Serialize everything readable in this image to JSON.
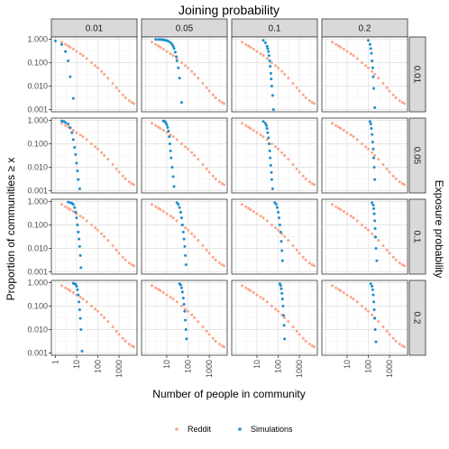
{
  "chart_data": {
    "type": "scatter",
    "title": "Joining probability",
    "xlabel": "Number of people in community",
    "ylabel": "Proportion of communities ≥ x",
    "right_label": "Exposure probability",
    "x_scale": "log10",
    "y_scale": "log10",
    "xlim": [
      0.65,
      7000
    ],
    "ylim": [
      0.0008,
      1.25
    ],
    "x_ticks": [
      {
        "value": 1,
        "label": "1"
      },
      {
        "value": 10,
        "label": "10"
      },
      {
        "value": 100,
        "label": "100"
      },
      {
        "value": 1000,
        "label": "1000"
      }
    ],
    "y_ticks": [
      {
        "value": 1,
        "label": "1.000"
      },
      {
        "value": 0.1,
        "label": "0.100"
      },
      {
        "value": 0.01,
        "label": "0.010"
      },
      {
        "value": 0.001,
        "label": "0.001"
      }
    ],
    "columns": [
      "0.01",
      "0.05",
      "0.1",
      "0.2"
    ],
    "rows": [
      "0.01",
      "0.05",
      "0.1",
      "0.2"
    ],
    "legend": {
      "position": "bottom",
      "entries": [
        {
          "name": "Reddit",
          "color": "#fca588"
        },
        {
          "name": "Simulations",
          "color": "#1a8fcc"
        }
      ]
    },
    "reddit_series": {
      "name": "Reddit",
      "x": [
        2,
        3,
        4,
        5,
        7,
        10,
        15,
        20,
        30,
        50,
        75,
        100,
        150,
        200,
        300,
        500,
        750,
        1000,
        1500,
        2000,
        3000,
        4000,
        5000
      ],
      "y": [
        0.75,
        0.6,
        0.52,
        0.45,
        0.38,
        0.3,
        0.24,
        0.2,
        0.15,
        0.1,
        0.075,
        0.06,
        0.042,
        0.032,
        0.022,
        0.013,
        0.0085,
        0.0062,
        0.0042,
        0.0032,
        0.0024,
        0.002,
        0.0018
      ]
    },
    "simulation_series": [
      {
        "row": "0.01",
        "col": "0.01",
        "x": [
          1,
          2,
          3,
          4,
          5,
          7
        ],
        "y": [
          0.85,
          0.6,
          0.3,
          0.12,
          0.025,
          0.003
        ]
      },
      {
        "row": "0.01",
        "col": "0.05",
        "x": [
          3,
          4,
          5,
          6,
          7,
          8,
          10,
          12,
          15,
          18,
          20,
          22,
          25,
          28,
          30,
          35,
          40,
          50
        ],
        "y": [
          0.98,
          0.98,
          0.97,
          0.96,
          0.95,
          0.92,
          0.88,
          0.82,
          0.72,
          0.6,
          0.5,
          0.4,
          0.28,
          0.18,
          0.12,
          0.06,
          0.022,
          0.002
        ]
      },
      {
        "row": "0.01",
        "col": "0.1",
        "x": [
          20,
          25,
          30,
          32,
          35,
          37,
          40,
          42,
          45,
          47,
          50,
          55,
          60
        ],
        "y": [
          0.9,
          0.7,
          0.5,
          0.4,
          0.3,
          0.2,
          0.12,
          0.07,
          0.035,
          0.02,
          0.01,
          0.004,
          0.001
        ]
      },
      {
        "row": "0.01",
        "col": "0.2",
        "x": [
          100,
          120,
          130,
          140,
          150,
          160,
          170,
          180,
          200
        ],
        "y": [
          0.9,
          0.6,
          0.4,
          0.25,
          0.12,
          0.06,
          0.025,
          0.008,
          0.0012
        ]
      },
      {
        "row": "0.05",
        "col": "0.01",
        "x": [
          2,
          2.5,
          3,
          4,
          5,
          6,
          7,
          8,
          9,
          10,
          11,
          12,
          14
        ],
        "y": [
          0.95,
          0.9,
          0.8,
          0.7,
          0.5,
          0.3,
          0.15,
          0.07,
          0.035,
          0.015,
          0.007,
          0.003,
          0.0012
        ]
      },
      {
        "row": "0.05",
        "col": "0.05",
        "x": [
          7,
          8,
          9,
          10,
          11,
          12,
          13,
          14,
          15,
          16,
          18,
          20,
          22
        ],
        "y": [
          0.95,
          0.9,
          0.8,
          0.65,
          0.5,
          0.35,
          0.2,
          0.1,
          0.05,
          0.025,
          0.01,
          0.004,
          0.0015
        ]
      },
      {
        "row": "0.05",
        "col": "0.1",
        "x": [
          20,
          25,
          28,
          30,
          32,
          35,
          37,
          40,
          42,
          45,
          48,
          50,
          55
        ],
        "y": [
          0.9,
          0.75,
          0.6,
          0.45,
          0.3,
          0.18,
          0.1,
          0.05,
          0.025,
          0.012,
          0.006,
          0.003,
          0.0012
        ]
      },
      {
        "row": "0.05",
        "col": "0.2",
        "x": [
          120,
          130,
          140,
          150,
          160,
          170,
          180,
          190,
          200
        ],
        "y": [
          0.9,
          0.7,
          0.45,
          0.25,
          0.12,
          0.06,
          0.025,
          0.01,
          0.003
        ]
      },
      {
        "row": "0.1",
        "col": "0.01",
        "x": [
          4,
          5,
          6,
          7,
          8,
          9,
          10,
          11,
          12,
          13,
          14,
          15,
          16
        ],
        "y": [
          0.95,
          0.9,
          0.85,
          0.75,
          0.55,
          0.35,
          0.2,
          0.1,
          0.05,
          0.025,
          0.012,
          0.005,
          0.0015
        ]
      },
      {
        "row": "0.1",
        "col": "0.05",
        "x": [
          30,
          35,
          40,
          45,
          50,
          55,
          60,
          65,
          70,
          75,
          80
        ],
        "y": [
          0.9,
          0.75,
          0.55,
          0.35,
          0.2,
          0.1,
          0.05,
          0.025,
          0.012,
          0.005,
          0.002
        ]
      },
      {
        "row": "0.1",
        "col": "0.1",
        "x": [
          70,
          80,
          90,
          100,
          110,
          120,
          130,
          140,
          150,
          160
        ],
        "y": [
          0.9,
          0.75,
          0.55,
          0.35,
          0.2,
          0.1,
          0.05,
          0.02,
          0.008,
          0.003
        ]
      },
      {
        "row": "0.1",
        "col": "0.2",
        "x": [
          150,
          170,
          180,
          190,
          200,
          210,
          220,
          230,
          250
        ],
        "y": [
          0.9,
          0.7,
          0.5,
          0.3,
          0.15,
          0.07,
          0.03,
          0.01,
          0.003
        ]
      },
      {
        "row": "0.2",
        "col": "0.01",
        "x": [
          7,
          8,
          9,
          10,
          11,
          12,
          13,
          14,
          15,
          16,
          18
        ],
        "y": [
          0.95,
          0.9,
          0.85,
          0.7,
          0.5,
          0.3,
          0.15,
          0.07,
          0.03,
          0.01,
          0.0012
        ]
      },
      {
        "row": "0.2",
        "col": "0.05",
        "x": [
          40,
          45,
          50,
          55,
          60,
          65,
          70,
          75,
          80,
          85
        ],
        "y": [
          0.9,
          0.8,
          0.6,
          0.4,
          0.22,
          0.12,
          0.06,
          0.025,
          0.01,
          0.004
        ]
      },
      {
        "row": "0.2",
        "col": "0.1",
        "x": [
          120,
          130,
          140,
          150,
          160,
          170,
          180,
          190,
          200
        ],
        "y": [
          0.9,
          0.75,
          0.55,
          0.35,
          0.2,
          0.1,
          0.04,
          0.015,
          0.004
        ]
      },
      {
        "row": "0.2",
        "col": "0.2",
        "x": [
          130,
          150,
          160,
          170,
          180,
          190,
          200,
          210,
          230
        ],
        "y": [
          0.9,
          0.7,
          0.5,
          0.3,
          0.15,
          0.07,
          0.03,
          0.01,
          0.003
        ]
      }
    ],
    "grid": true
  }
}
